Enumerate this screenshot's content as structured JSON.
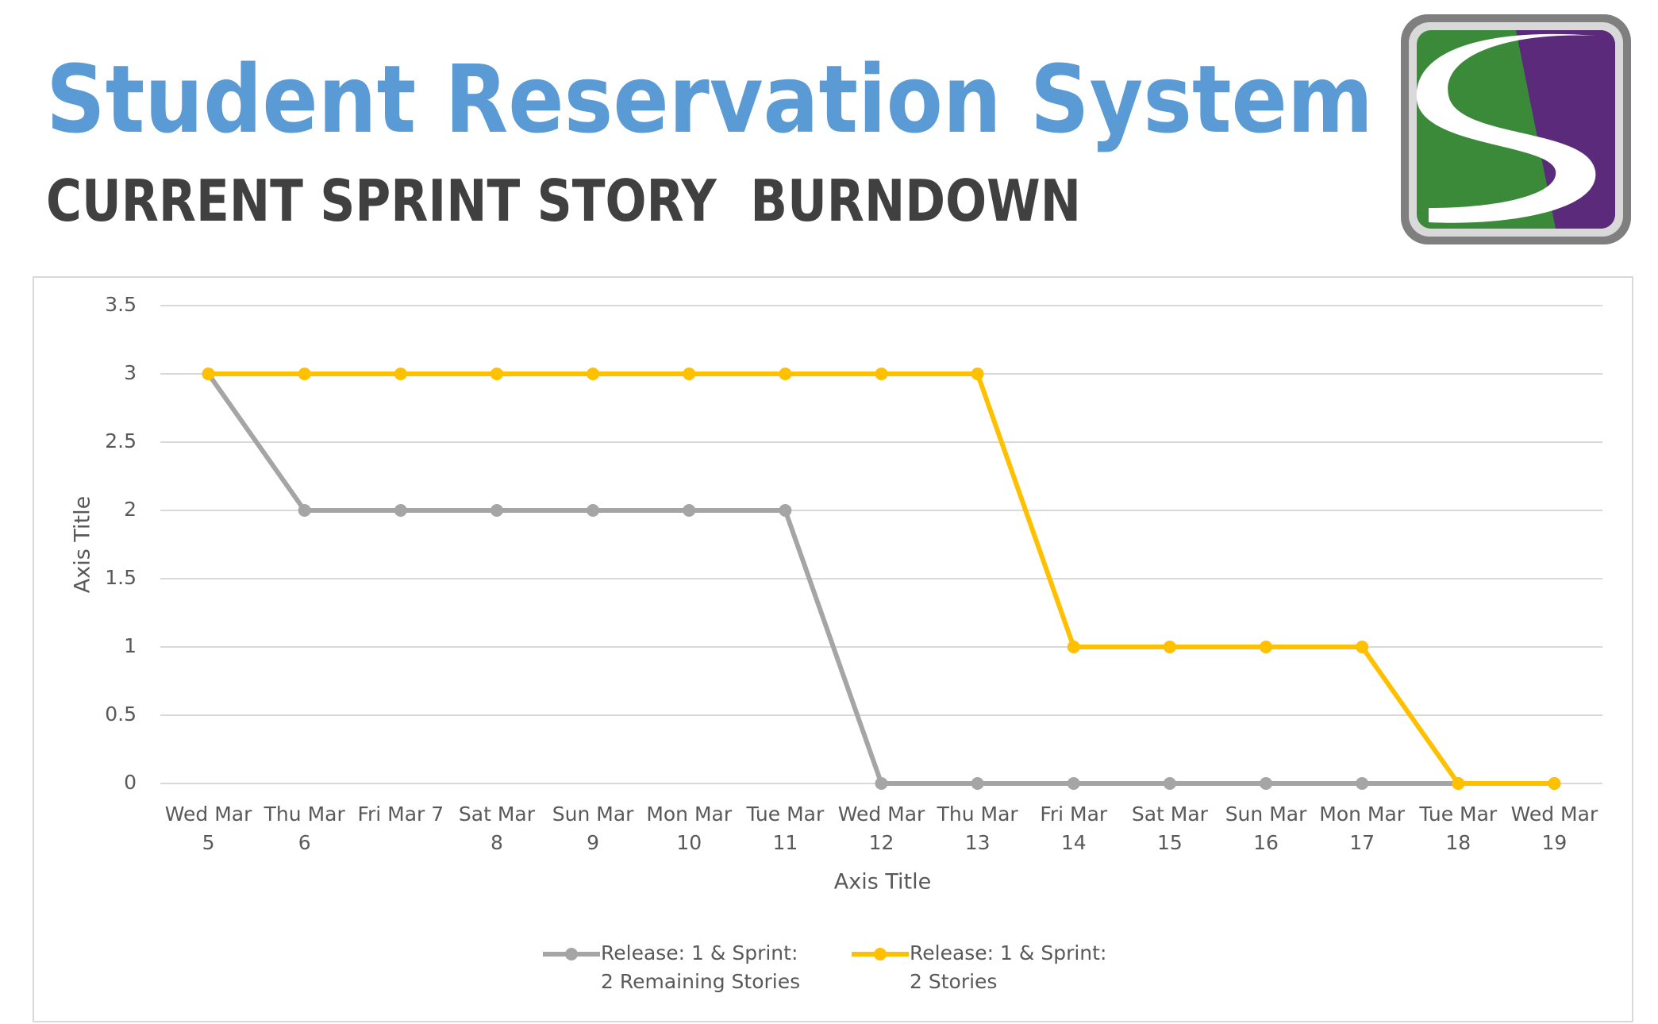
{
  "header": {
    "title": "Student Reservation System",
    "subtitle": "CURRENT SPRINT STORY  BURNDOWN"
  },
  "chart_data": {
    "type": "line",
    "categories": [
      "Wed Mar 5",
      "Thu Mar 6",
      "Fri Mar 7",
      "Sat Mar 8",
      "Sun Mar 9",
      "Mon Mar 10",
      "Tue Mar 11",
      "Wed Mar 12",
      "Thu Mar 13",
      "Fri Mar 14",
      "Sat Mar 15",
      "Sun Mar 16",
      "Mon Mar 17",
      "Tue Mar 18",
      "Wed Mar 19"
    ],
    "series": [
      {
        "name": "Release: 1 & Sprint: 2 Remaining Stories",
        "color": "#a5a5a5",
        "values": [
          3,
          2,
          2,
          2,
          2,
          2,
          2,
          0,
          0,
          0,
          0,
          0,
          0,
          0,
          0
        ]
      },
      {
        "name": "Release: 1 & Sprint: 2 Stories",
        "color": "#ffc000",
        "values": [
          3,
          3,
          3,
          3,
          3,
          3,
          3,
          3,
          3,
          1,
          1,
          1,
          1,
          0,
          0
        ]
      }
    ],
    "x_label": "Axis Title",
    "y_label": "Axis Title",
    "ylim": [
      0,
      3.5
    ],
    "yticks": [
      0,
      0.5,
      1,
      1.5,
      2,
      2.5,
      3,
      3.5
    ],
    "grid": true,
    "legend": "bottom"
  }
}
